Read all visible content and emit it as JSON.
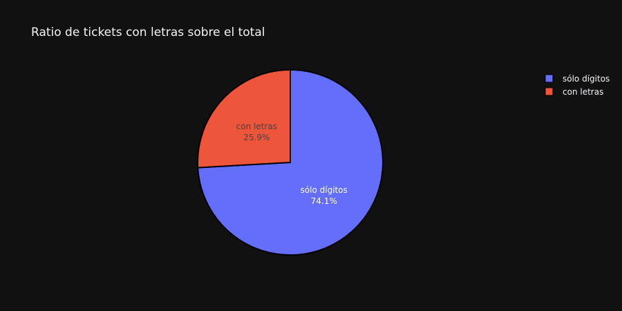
{
  "chart_data": {
    "type": "pie",
    "title": "Ratio de tickets con letras sobre el total",
    "categories": [
      "sólo dígitos",
      "con letras"
    ],
    "values": [
      74.1,
      25.9
    ],
    "value_labels": [
      "74.1%",
      "25.9%"
    ],
    "colors": [
      "#636efa",
      "#ef553b"
    ],
    "label_colors": [
      "#ffffff",
      "#444444"
    ],
    "slice_border_color": "#000000",
    "background": "#111111",
    "legend_position": "top-right",
    "direction": "counterclockwise",
    "start": "top"
  }
}
